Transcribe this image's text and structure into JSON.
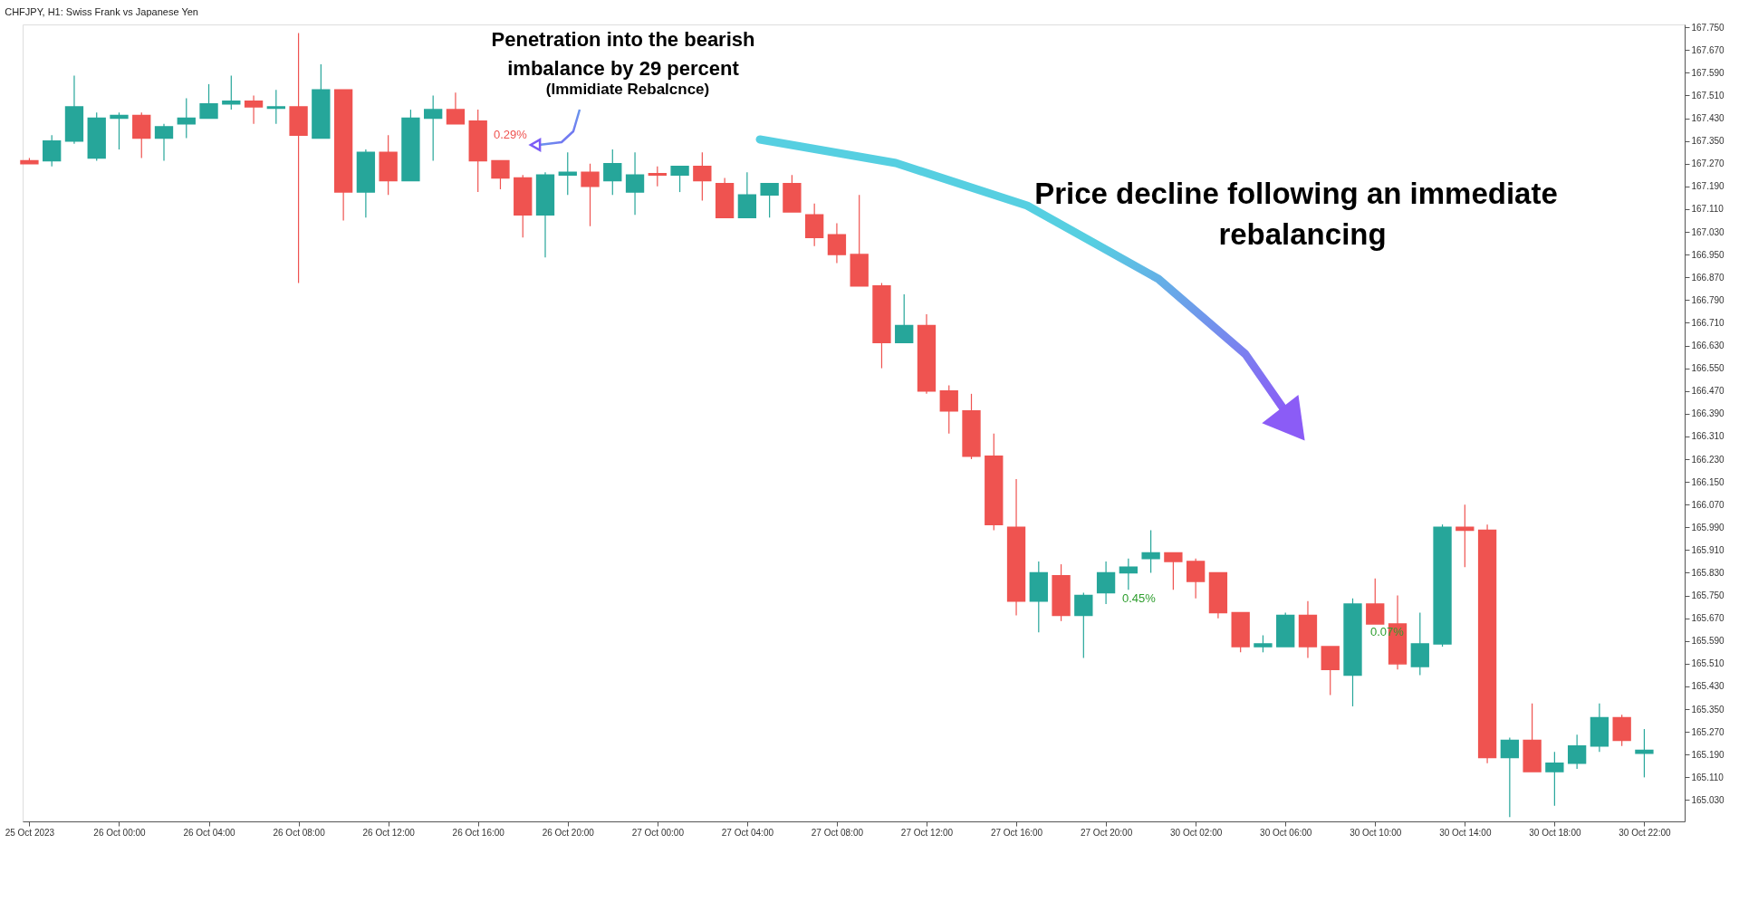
{
  "chart_data": {
    "type": "candlestick",
    "title": "CHFJPY, H1:  Swiss Frank vs Japanese Yen",
    "categories": [
      "25 Oct 2023",
      null,
      null,
      null,
      "26 Oct 00:00",
      null,
      null,
      null,
      "26 Oct 04:00",
      null,
      null,
      null,
      "26 Oct 08:00",
      null,
      null,
      null,
      "26 Oct 12:00",
      null,
      null,
      null,
      "26 Oct 16:00",
      null,
      null,
      null,
      "26 Oct 20:00",
      null,
      null,
      null,
      "27 Oct 00:00",
      null,
      null,
      null,
      "27 Oct 04:00",
      null,
      null,
      null,
      "27 Oct 08:00",
      null,
      null,
      null,
      "27 Oct 12:00",
      null,
      null,
      null,
      "27 Oct 16:00",
      null,
      null,
      null,
      "27 Oct 20:00",
      null,
      null,
      null,
      "30 Oct 02:00",
      null,
      null,
      null,
      "30 Oct 06:00",
      null,
      null,
      null,
      "30 Oct 10:00",
      null,
      null,
      null,
      "30 Oct 14:00",
      null,
      null,
      null,
      "30 Oct 18:00",
      null,
      null,
      null,
      "30 Oct 22:00"
    ],
    "ohlc": [
      [
        167.28,
        167.29,
        167.27,
        167.27
      ],
      [
        167.28,
        167.37,
        167.26,
        167.35
      ],
      [
        167.35,
        167.58,
        167.34,
        167.47
      ],
      [
        167.29,
        167.45,
        167.28,
        167.43
      ],
      [
        167.43,
        167.45,
        167.32,
        167.44
      ],
      [
        167.44,
        167.45,
        167.29,
        167.36
      ],
      [
        167.36,
        167.41,
        167.28,
        167.4
      ],
      [
        167.41,
        167.5,
        167.36,
        167.43
      ],
      [
        167.43,
        167.55,
        167.43,
        167.48
      ],
      [
        167.48,
        167.58,
        167.46,
        167.49
      ],
      [
        167.49,
        167.51,
        167.41,
        167.47
      ],
      [
        167.465,
        167.53,
        167.41,
        167.47
      ],
      [
        167.47,
        167.73,
        166.85,
        167.37
      ],
      [
        167.36,
        167.62,
        167.36,
        167.53
      ],
      [
        167.53,
        167.53,
        167.07,
        167.17
      ],
      [
        167.17,
        167.32,
        167.08,
        167.31
      ],
      [
        167.31,
        167.37,
        167.16,
        167.21
      ],
      [
        167.21,
        167.46,
        167.21,
        167.43
      ],
      [
        167.43,
        167.51,
        167.28,
        167.46
      ],
      [
        167.46,
        167.52,
        167.41,
        167.41
      ],
      [
        167.42,
        167.46,
        167.17,
        167.28
      ],
      [
        167.28,
        167.28,
        167.18,
        167.22
      ],
      [
        167.22,
        167.23,
        167.01,
        167.09
      ],
      [
        167.09,
        167.24,
        166.94,
        167.23
      ],
      [
        167.23,
        167.31,
        167.16,
        167.24
      ],
      [
        167.24,
        167.27,
        167.05,
        167.19
      ],
      [
        167.21,
        167.32,
        167.16,
        167.27
      ],
      [
        167.17,
        167.31,
        167.09,
        167.23
      ],
      [
        167.235,
        167.26,
        167.19,
        167.23
      ],
      [
        167.23,
        167.26,
        167.17,
        167.26
      ],
      [
        167.26,
        167.31,
        167.14,
        167.21
      ],
      [
        167.2,
        167.22,
        167.08,
        167.08
      ],
      [
        167.08,
        167.24,
        167.08,
        167.16
      ],
      [
        167.16,
        167.2,
        167.08,
        167.2
      ],
      [
        167.2,
        167.23,
        167.1,
        167.1
      ],
      [
        167.09,
        167.13,
        166.98,
        167.01
      ],
      [
        167.02,
        167.06,
        166.92,
        166.95
      ],
      [
        166.95,
        167.16,
        166.84,
        166.84
      ],
      [
        166.84,
        166.85,
        166.55,
        166.64
      ],
      [
        166.64,
        166.81,
        166.64,
        166.7
      ],
      [
        166.7,
        166.74,
        166.46,
        166.47
      ],
      [
        166.47,
        166.49,
        166.32,
        166.4
      ],
      [
        166.4,
        166.46,
        166.23,
        166.24
      ],
      [
        166.24,
        166.32,
        165.98,
        166.0
      ],
      [
        165.99,
        166.16,
        165.68,
        165.73
      ],
      [
        165.73,
        165.87,
        165.62,
        165.83
      ],
      [
        165.82,
        165.86,
        165.66,
        165.68
      ],
      [
        165.68,
        165.76,
        165.53,
        165.75
      ],
      [
        165.76,
        165.87,
        165.72,
        165.83
      ],
      [
        165.83,
        165.88,
        165.77,
        165.85
      ],
      [
        165.88,
        165.98,
        165.83,
        165.9
      ],
      [
        165.9,
        165.9,
        165.77,
        165.87
      ],
      [
        165.87,
        165.88,
        165.74,
        165.8
      ],
      [
        165.83,
        165.83,
        165.67,
        165.69
      ],
      [
        165.69,
        165.69,
        165.55,
        165.57
      ],
      [
        165.57,
        165.61,
        165.55,
        165.58
      ],
      [
        165.57,
        165.69,
        165.57,
        165.68
      ],
      [
        165.68,
        165.73,
        165.53,
        165.57
      ],
      [
        165.57,
        165.57,
        165.4,
        165.49
      ],
      [
        165.47,
        165.74,
        165.36,
        165.72
      ],
      [
        165.72,
        165.81,
        165.65,
        165.65
      ],
      [
        165.65,
        165.75,
        165.49,
        165.51
      ],
      [
        165.5,
        165.69,
        165.47,
        165.58
      ],
      [
        165.58,
        166.0,
        165.57,
        165.99
      ],
      [
        165.99,
        166.07,
        165.85,
        165.98
      ],
      [
        165.98,
        166.0,
        165.16,
        165.18
      ],
      [
        165.18,
        165.25,
        164.97,
        165.24
      ],
      [
        165.24,
        165.37,
        165.13,
        165.13
      ],
      [
        165.13,
        165.2,
        165.01,
        165.16
      ],
      [
        165.16,
        165.26,
        165.14,
        165.22
      ],
      [
        165.22,
        165.37,
        165.2,
        165.32
      ],
      [
        165.32,
        165.33,
        165.22,
        165.24
      ],
      [
        165.195,
        165.28,
        165.11,
        165.205
      ]
    ],
    "colors": [
      "#ef5350",
      "#26a69a",
      "#26a69a",
      "#26a69a",
      "#26a69a",
      "#ef5350",
      "#26a69a",
      "#26a69a",
      "#26a69a",
      "#26a69a",
      "#ef5350",
      "#26a69a",
      "#ef5350",
      "#26a69a",
      "#ef5350",
      "#26a69a",
      "#ef5350",
      "#26a69a",
      "#26a69a",
      "#ef5350",
      "#ef5350",
      "#ef5350",
      "#ef5350",
      "#26a69a",
      "#26a69a",
      "#ef5350",
      "#26a69a",
      "#26a69a",
      "#ef5350",
      "#26a69a",
      "#ef5350",
      "#ef5350",
      "#26a69a",
      "#26a69a",
      "#ef5350",
      "#ef5350",
      "#ef5350",
      "#ef5350",
      "#ef5350",
      "#26a69a",
      "#ef5350",
      "#ef5350",
      "#ef5350",
      "#ef5350",
      "#ef5350",
      "#26a69a",
      "#ef5350",
      "#26a69a",
      "#26a69a",
      "#26a69a",
      "#26a69a",
      "#ef5350",
      "#ef5350",
      "#ef5350",
      "#ef5350",
      "#26a69a",
      "#26a69a",
      "#ef5350",
      "#ef5350",
      "#26a69a",
      "#ef5350",
      "#ef5350",
      "#26a69a",
      "#26a69a",
      "#ef5350",
      "#ef5350",
      "#26a69a",
      "#ef5350",
      "#26a69a",
      "#26a69a",
      "#26a69a",
      "#ef5350",
      "#26a69a"
    ],
    "ylim": [
      164.955,
      167.76
    ],
    "yticks": [
      {
        "value": 165.03,
        "label": "165.030"
      },
      {
        "value": 165.11,
        "label": "165.110"
      },
      {
        "value": 165.19,
        "label": "165.190"
      },
      {
        "value": 165.27,
        "label": "165.270"
      },
      {
        "value": 165.35,
        "label": "165.350"
      },
      {
        "value": 165.43,
        "label": "165.430"
      },
      {
        "value": 165.51,
        "label": "165.510"
      },
      {
        "value": 165.59,
        "label": "165.590"
      },
      {
        "value": 165.67,
        "label": "165.670"
      },
      {
        "value": 165.75,
        "label": "165.750"
      },
      {
        "value": 165.83,
        "label": "165.830"
      },
      {
        "value": 165.91,
        "label": "165.910"
      },
      {
        "value": 165.99,
        "label": "165.990"
      },
      {
        "value": 166.07,
        "label": "166.070"
      },
      {
        "value": 166.15,
        "label": "166.150"
      },
      {
        "value": 166.23,
        "label": "166.230"
      },
      {
        "value": 166.31,
        "label": "166.310"
      },
      {
        "value": 166.39,
        "label": "166.390"
      },
      {
        "value": 166.47,
        "label": "166.470"
      },
      {
        "value": 166.55,
        "label": "166.550"
      },
      {
        "value": 166.63,
        "label": "166.630"
      },
      {
        "value": 166.71,
        "label": "166.710"
      },
      {
        "value": 166.79,
        "label": "166.790"
      },
      {
        "value": 166.87,
        "label": "166.870"
      },
      {
        "value": 166.95,
        "label": "166.950"
      },
      {
        "value": 167.03,
        "label": "167.030"
      },
      {
        "value": 167.11,
        "label": "167.110"
      },
      {
        "value": 167.19,
        "label": "167.190"
      },
      {
        "value": 167.27,
        "label": "167.270"
      },
      {
        "value": 167.35,
        "label": "167.350"
      },
      {
        "value": 167.43,
        "label": "167.430"
      },
      {
        "value": 167.51,
        "label": "167.510"
      },
      {
        "value": 167.59,
        "label": "167.590"
      },
      {
        "value": 167.67,
        "label": "167.670"
      },
      {
        "value": 167.75,
        "label": "167.750"
      }
    ],
    "annotations": [
      "Penetration into the bearish",
      "imbalance by 29 percent",
      "(Immidiate Rebalcnce)",
      "Price decline following an immediate",
      "rebalancing",
      "0.29%",
      "0.45%",
      "0.07%"
    ],
    "grid": false
  }
}
